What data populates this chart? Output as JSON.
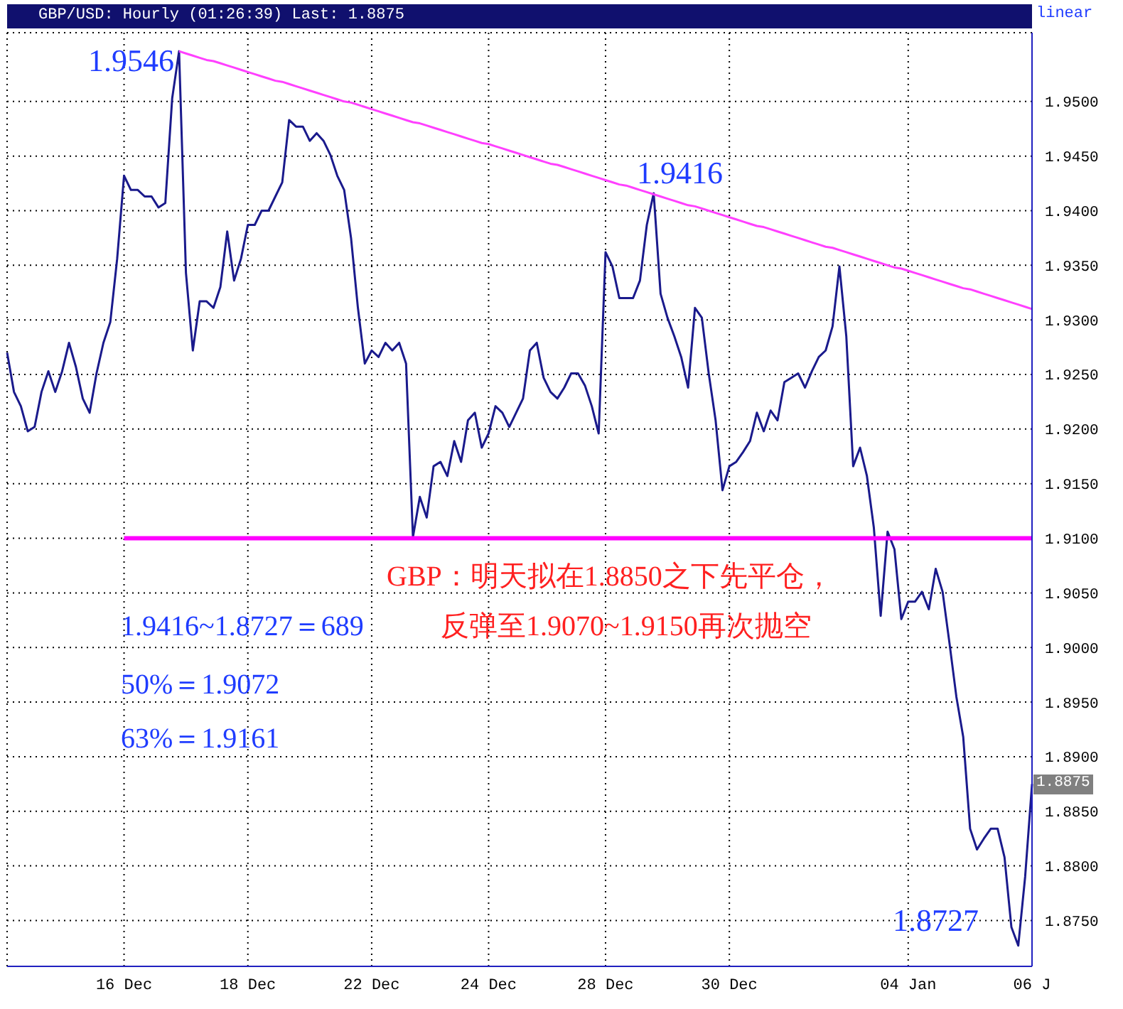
{
  "chart_data": {
    "type": "line",
    "title": "GBP/USD: Hourly (01:26:39) Last: 1.8875",
    "categories": [
      null,
      null,
      null,
      null,
      null,
      null,
      null,
      null,
      null,
      null,
      null,
      null,
      null,
      null,
      null,
      null,
      null,
      "16 Dec",
      null,
      null,
      null,
      null,
      null,
      null,
      null,
      null,
      null,
      null,
      null,
      null,
      null,
      null,
      null,
      null,
      null,
      "18 Dec",
      null,
      null,
      null,
      null,
      null,
      null,
      null,
      null,
      null,
      null,
      null,
      null,
      null,
      null,
      null,
      null,
      null,
      "22 Dec",
      null,
      null,
      null,
      null,
      null,
      null,
      null,
      null,
      null,
      null,
      null,
      null,
      null,
      null,
      null,
      null,
      "24 Dec",
      null,
      null,
      null,
      null,
      null,
      null,
      null,
      null,
      null,
      null,
      null,
      null,
      null,
      null,
      null,
      null,
      "28 Dec",
      null,
      null,
      null,
      null,
      null,
      null,
      null,
      null,
      null,
      null,
      null,
      null,
      null,
      null,
      null,
      null,
      null,
      "30 Dec",
      null,
      null,
      null,
      null,
      null,
      null,
      null,
      null,
      null,
      null,
      null,
      null,
      null,
      null,
      null,
      null,
      null,
      null,
      null,
      null,
      null,
      null,
      null,
      null,
      null,
      "04 Jan",
      null,
      null,
      null,
      null,
      null,
      null,
      null,
      null,
      null,
      null,
      null,
      null,
      null,
      null,
      null,
      null,
      null,
      "06 J"
    ],
    "series": [
      {
        "color": "#1a1a8c",
        "values": [
          1.927,
          1.9234,
          1.9221,
          1.9198,
          1.9202,
          1.9234,
          1.9253,
          1.9234,
          1.9253,
          1.9279,
          1.9257,
          1.9228,
          1.9215,
          1.9251,
          1.9279,
          1.9298,
          1.9356,
          1.9432,
          1.9419,
          1.9419,
          1.9413,
          1.9413,
          1.9403,
          1.9407,
          1.9503,
          1.9546,
          1.9343,
          1.9272,
          1.9317,
          1.9317,
          1.9311,
          1.933,
          1.9381,
          1.9336,
          1.9356,
          1.9387,
          1.9387,
          1.94,
          1.94,
          1.9413,
          1.9426,
          1.9483,
          1.9477,
          1.9477,
          1.9464,
          1.9471,
          1.9464,
          1.9451,
          1.9432,
          1.9419,
          1.9375,
          1.9311,
          1.926,
          1.9272,
          1.9266,
          1.9279,
          1.9272,
          1.9279,
          1.926,
          1.9101,
          1.9138,
          1.9119,
          1.9166,
          1.917,
          1.9157,
          1.9189,
          1.917,
          1.9208,
          1.9215,
          1.9183,
          1.9196,
          1.9221,
          1.9215,
          1.9202,
          1.9215,
          1.9228,
          1.9272,
          1.9279,
          1.9247,
          1.9234,
          1.9228,
          1.9238,
          1.9251,
          1.9251,
          1.924,
          1.9221,
          1.9196,
          1.9362,
          1.9349,
          1.932,
          1.932,
          1.932,
          1.9336,
          1.9387,
          1.9416,
          1.9324,
          1.9302,
          1.9285,
          1.9266,
          1.9238,
          1.9311,
          1.9302,
          1.9251,
          1.9208,
          1.9144,
          1.9166,
          1.917,
          1.9179,
          1.9189,
          1.9215,
          1.9198,
          1.9217,
          1.9208,
          1.9243,
          1.9247,
          1.9251,
          1.9238,
          1.9253,
          1.9266,
          1.9272,
          1.9294,
          1.9349,
          1.9285,
          1.9166,
          1.9183,
          1.9157,
          1.911,
          1.9029,
          1.9106,
          1.909,
          1.9026,
          1.9042,
          1.9042,
          1.9051,
          1.9035,
          1.9072,
          1.9051,
          1.9004,
          1.8955,
          1.8918,
          1.8834,
          1.8815,
          1.8825,
          1.8834,
          1.8834,
          1.8808,
          1.8744,
          1.8727,
          1.879,
          1.8875
        ]
      },
      {
        "color": "#ff40ff",
        "values": [
          null,
          null,
          null,
          null,
          null,
          null,
          null,
          null,
          null,
          null,
          null,
          null,
          null,
          null,
          null,
          null,
          null,
          null,
          null,
          null,
          null,
          null,
          null,
          null,
          null,
          1.9546,
          1.9544,
          1.9542,
          1.954,
          1.9538,
          1.9537,
          1.9535,
          1.9533,
          1.9531,
          1.9529,
          1.9527,
          1.9525,
          1.9523,
          1.9521,
          1.9519,
          1.9518,
          1.9516,
          1.9514,
          1.9512,
          1.951,
          1.9508,
          1.9506,
          1.9504,
          1.9502,
          1.95,
          1.9499,
          1.9497,
          1.9495,
          1.9493,
          1.9491,
          1.9489,
          1.9487,
          1.9485,
          1.9483,
          1.9481,
          1.948,
          1.9478,
          1.9476,
          1.9474,
          1.9472,
          1.947,
          1.9468,
          1.9466,
          1.9464,
          1.9462,
          1.9461,
          1.9459,
          1.9457,
          1.9455,
          1.9453,
          1.9451,
          1.9449,
          1.9447,
          1.9445,
          1.9443,
          1.9442,
          1.944,
          1.9438,
          1.9436,
          1.9434,
          1.9432,
          1.943,
          1.9428,
          1.9426,
          1.9424,
          1.9423,
          1.9421,
          1.9419,
          1.9417,
          1.9415,
          1.9413,
          1.9411,
          1.9409,
          1.9407,
          1.9405,
          1.9404,
          1.9402,
          1.94,
          1.9398,
          1.9396,
          1.9394,
          1.9392,
          1.939,
          1.9388,
          1.9386,
          1.9385,
          1.9383,
          1.9381,
          1.9379,
          1.9377,
          1.9375,
          1.9373,
          1.9371,
          1.9369,
          1.9367,
          1.9366,
          1.9364,
          1.9362,
          1.936,
          1.9358,
          1.9356,
          1.9354,
          1.9352,
          1.935,
          1.9348,
          1.9347,
          1.9345,
          1.9343,
          1.9341,
          1.9339,
          1.9337,
          1.9335,
          1.9333,
          1.9331,
          1.9329,
          1.9328,
          1.9326,
          1.9324,
          1.9322,
          1.932,
          1.9318,
          1.9316,
          1.9314,
          1.9312,
          1.931
        ]
      },
      {
        "color": "#ff00ff",
        "values": [
          null,
          null,
          null,
          null,
          null,
          null,
          null,
          null,
          null,
          null,
          null,
          null,
          null,
          null,
          null,
          null,
          null,
          1.91,
          1.91,
          1.91,
          1.91,
          1.91,
          1.91,
          1.91,
          1.91,
          1.91,
          1.91,
          1.91,
          1.91,
          1.91,
          1.91,
          1.91,
          1.91,
          1.91,
          1.91,
          1.91,
          1.91,
          1.91,
          1.91,
          1.91,
          1.91,
          1.91,
          1.91,
          1.91,
          1.91,
          1.91,
          1.91,
          1.91,
          1.91,
          1.91,
          1.91,
          1.91,
          1.91,
          1.91,
          1.91,
          1.91,
          1.91,
          1.91,
          1.91,
          1.91,
          1.91,
          1.91,
          1.91,
          1.91,
          1.91,
          1.91,
          1.91,
          1.91,
          1.91,
          1.91,
          1.91,
          1.91,
          1.91,
          1.91,
          1.91,
          1.91,
          1.91,
          1.91,
          1.91,
          1.91,
          1.91,
          1.91,
          1.91,
          1.91,
          1.91,
          1.91,
          1.91,
          1.91,
          1.91,
          1.91,
          1.91,
          1.91,
          1.91,
          1.91,
          1.91,
          1.91,
          1.91,
          1.91,
          1.91,
          1.91,
          1.91,
          1.91,
          1.91,
          1.91,
          1.91,
          1.91,
          1.91,
          1.91,
          1.91,
          1.91,
          1.91,
          1.91,
          1.91,
          1.91,
          1.91,
          1.91,
          1.91,
          1.91,
          1.91,
          1.91,
          1.91,
          1.91,
          1.91,
          1.91,
          1.91,
          1.91,
          1.91,
          1.91,
          1.91,
          1.91,
          1.91,
          1.91,
          1.91,
          1.91,
          1.91,
          1.91,
          1.91,
          1.91,
          1.91,
          1.91,
          1.91,
          1.91,
          1.91,
          1.91,
          1.91,
          1.91,
          1.91,
          1.91,
          1.91,
          1.91
        ]
      }
    ],
    "ylim": [
      1.8708,
      1.9563
    ],
    "yticks": [
      {
        "value": 1.875,
        "label": "1.8750"
      },
      {
        "value": 1.88,
        "label": "1.8800"
      },
      {
        "value": 1.885,
        "label": "1.8850"
      },
      {
        "value": 1.89,
        "label": "1.8900"
      },
      {
        "value": 1.895,
        "label": "1.8950"
      },
      {
        "value": 1.9,
        "label": "1.9000"
      },
      {
        "value": 1.905,
        "label": "1.9050"
      },
      {
        "value": 1.91,
        "label": "1.9100"
      },
      {
        "value": 1.915,
        "label": "1.9150"
      },
      {
        "value": 1.92,
        "label": "1.9200"
      },
      {
        "value": 1.925,
        "label": "1.9250"
      },
      {
        "value": 1.93,
        "label": "1.9300"
      },
      {
        "value": 1.935,
        "label": "1.9350"
      },
      {
        "value": 1.94,
        "label": "1.9400"
      },
      {
        "value": 1.945,
        "label": "1.9450"
      },
      {
        "value": 1.95,
        "label": "1.9500"
      }
    ],
    "grid": true,
    "marker": "none",
    "annotations": [
      "1.9546",
      "1.9416",
      "1.8727",
      "1.9416~1.8727＝689",
      "50%＝1.9072",
      "63%＝1.9161",
      "GBP：明天拟在1.8850之下先平仓，",
      "反弹至1.9070~1.9150再次抛空",
      "linear",
      "1.8875"
    ]
  }
}
